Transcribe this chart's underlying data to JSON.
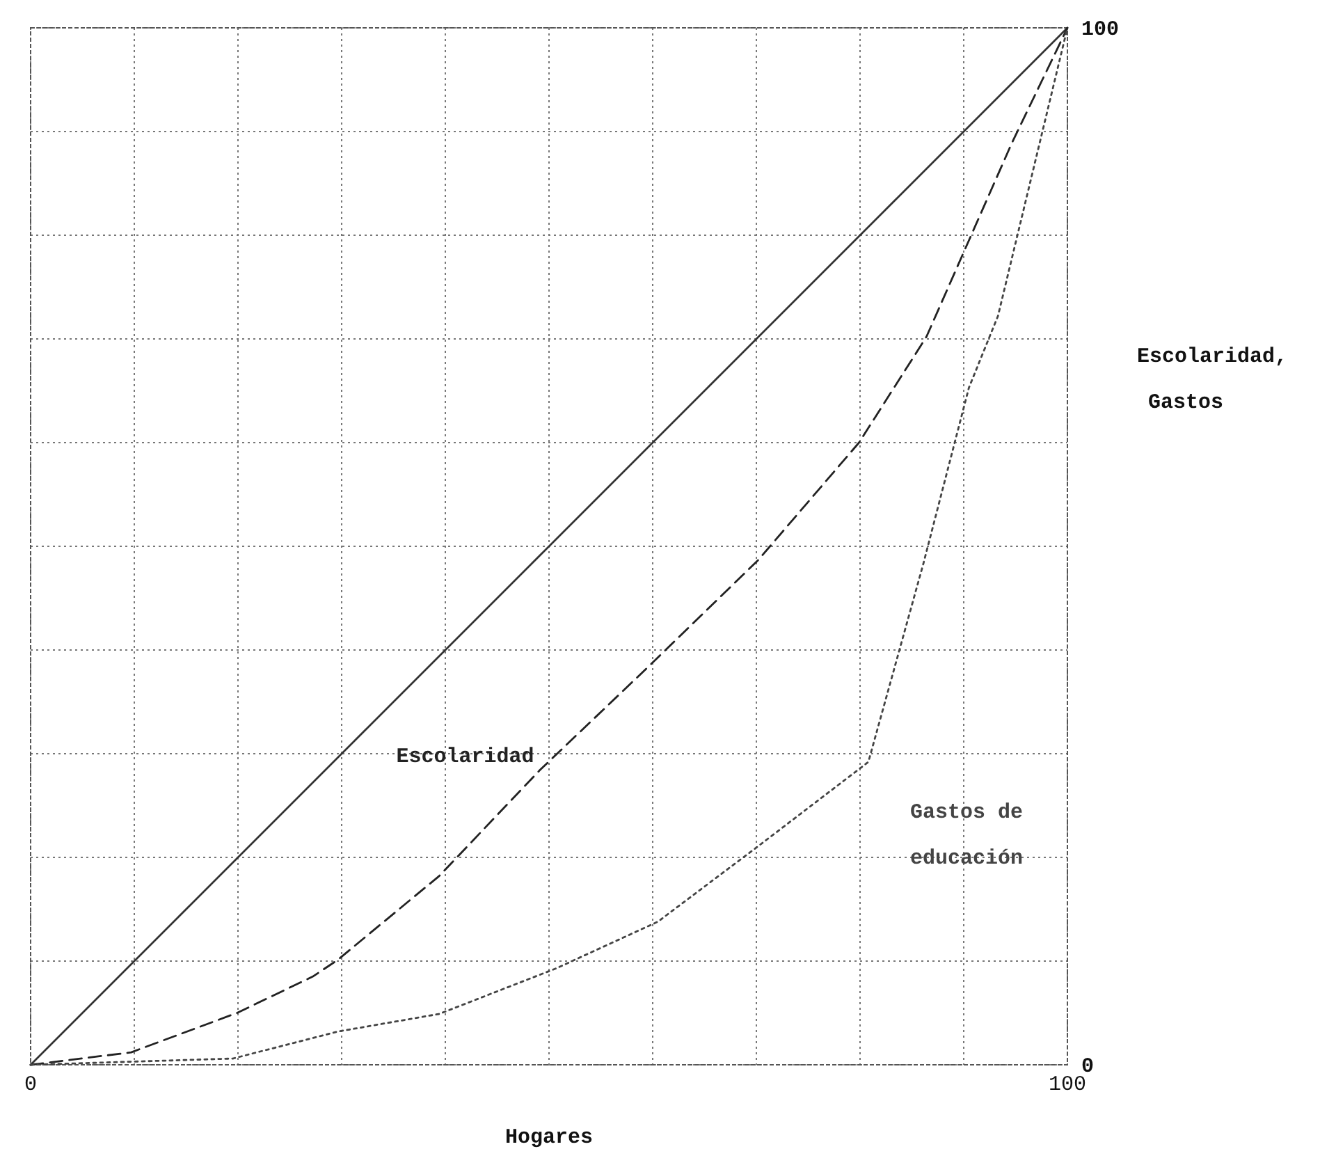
{
  "chart_data": {
    "type": "line",
    "xlabel": "Hogares",
    "ylabel": "Escolaridad, Gastos",
    "xlim": [
      0,
      100
    ],
    "ylim": [
      0,
      100
    ],
    "xticks": [
      0,
      {
        "value": 10,
        "label": null
      },
      {
        "value": 20,
        "label": null
      },
      {
        "value": 30,
        "label": null
      },
      {
        "value": 40,
        "label": null
      },
      {
        "value": 50,
        "label": null
      },
      {
        "value": 60,
        "label": null
      },
      {
        "value": 70,
        "label": null
      },
      {
        "value": 80,
        "label": null
      },
      {
        "value": 90,
        "label": null
      },
      100
    ],
    "yticks": [
      0,
      {
        "value": 10,
        "label": null
      },
      {
        "value": 20,
        "label": null
      },
      {
        "value": 30,
        "label": null
      },
      {
        "value": 40,
        "label": null
      },
      {
        "value": 50,
        "label": null
      },
      {
        "value": 60,
        "label": null
      },
      {
        "value": 70,
        "label": null
      },
      {
        "value": 80,
        "label": null
      },
      {
        "value": 90,
        "label": null
      },
      100
    ],
    "grid": true,
    "marker": "none",
    "series": [
      {
        "color": "#333333",
        "line_style": "solid",
        "x": [
          0,
          100
        ],
        "values": [
          0,
          100
        ]
      },
      {
        "name": "Escolaridad",
        "color": "#222222",
        "line_style": "dashed",
        "x": [
          0,
          9.7,
          19.9,
          27.2,
          29.6,
          39.4,
          49.1,
          59.7,
          70.2,
          79.9,
          86.4,
          90.5,
          94.6,
          100
        ],
        "values": [
          0,
          1.2,
          5.0,
          8.5,
          10.1,
          18.2,
          28.4,
          38.5,
          48.7,
          60.0,
          70.2,
          79.5,
          88.8,
          100
        ]
      },
      {
        "name": "Gastos de educación",
        "color": "#444444",
        "line_style": "dotted",
        "x": [
          0,
          19.5,
          29.6,
          39.4,
          50.7,
          60.5,
          70.2,
          80.8,
          86.1,
          90.5,
          93.3,
          100
        ],
        "values": [
          0,
          0.6,
          3.2,
          4.9,
          9.3,
          13.8,
          21.1,
          29.2,
          48.3,
          65.3,
          72.2,
          100
        ]
      }
    ]
  }
}
